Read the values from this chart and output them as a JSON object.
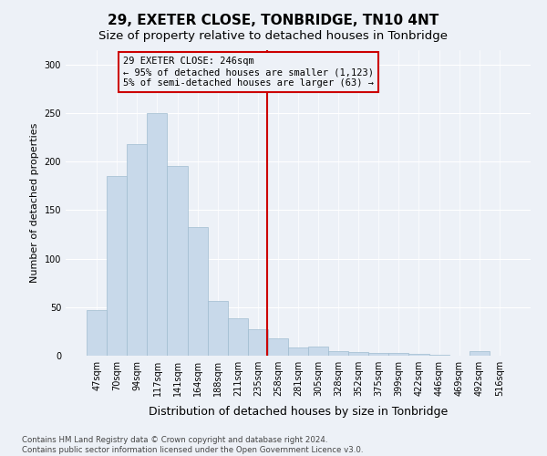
{
  "title": "29, EXETER CLOSE, TONBRIDGE, TN10 4NT",
  "subtitle": "Size of property relative to detached houses in Tonbridge",
  "xlabel": "Distribution of detached houses by size in Tonbridge",
  "ylabel": "Number of detached properties",
  "categories": [
    "47sqm",
    "70sqm",
    "94sqm",
    "117sqm",
    "141sqm",
    "164sqm",
    "188sqm",
    "211sqm",
    "235sqm",
    "258sqm",
    "281sqm",
    "305sqm",
    "328sqm",
    "352sqm",
    "375sqm",
    "399sqm",
    "422sqm",
    "446sqm",
    "469sqm",
    "492sqm",
    "516sqm"
  ],
  "bar_heights": [
    47,
    185,
    218,
    250,
    196,
    133,
    56,
    39,
    27,
    18,
    8,
    9,
    5,
    4,
    3,
    3,
    2,
    1,
    0,
    5,
    0
  ],
  "bar_color": "#c8d9ea",
  "bar_edge_color": "#a0bcd0",
  "vline_position": 8.48,
  "vline_color": "#cc0000",
  "annotation_text": "29 EXETER CLOSE: 246sqm\n← 95% of detached houses are smaller (1,123)\n5% of semi-detached houses are larger (63) →",
  "ylim": [
    0,
    315
  ],
  "yticks": [
    0,
    50,
    100,
    150,
    200,
    250,
    300
  ],
  "bg_color": "#edf1f7",
  "grid_color": "#ffffff",
  "title_fontsize": 11,
  "subtitle_fontsize": 9.5,
  "ylabel_fontsize": 8,
  "xlabel_fontsize": 9,
  "tick_fontsize": 7,
  "footer1": "Contains HM Land Registry data © Crown copyright and database right 2024.",
  "footer2": "Contains public sector information licensed under the Open Government Licence v3.0."
}
